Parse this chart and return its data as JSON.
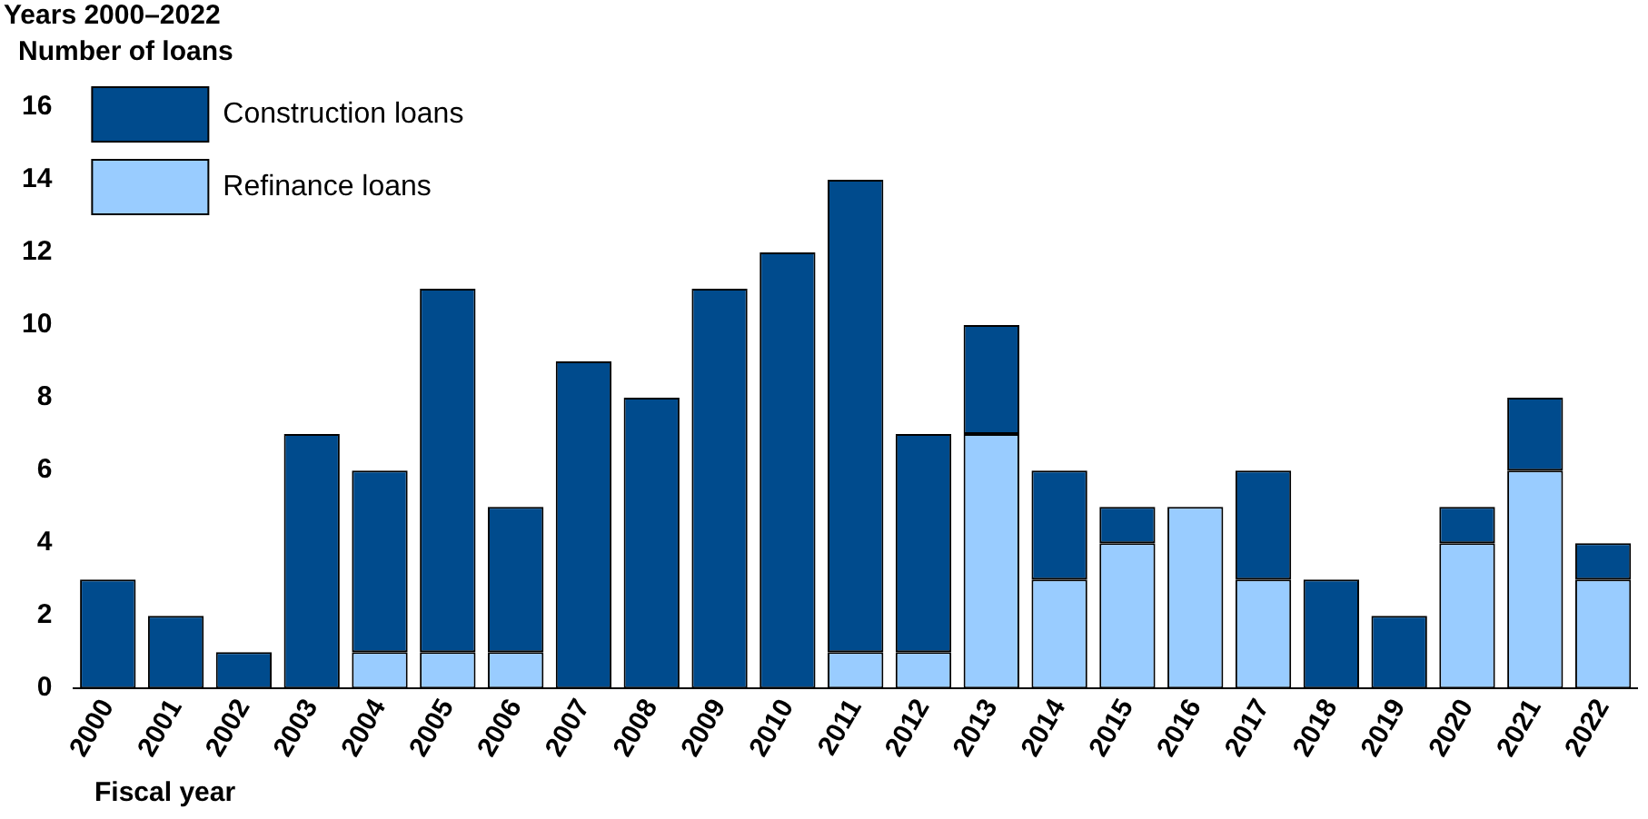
{
  "chart_data": {
    "type": "bar",
    "title": "Years 2000–2022",
    "ylabel": "Number of loans",
    "xlabel": "Fiscal year",
    "categories": [
      "2000",
      "2001",
      "2002",
      "2003",
      "2004",
      "2005",
      "2006",
      "2007",
      "2008",
      "2009",
      "2010",
      "2011",
      "2012",
      "2013",
      "2014",
      "2015",
      "2016",
      "2017",
      "2018",
      "2019",
      "2020",
      "2021",
      "2022"
    ],
    "series": [
      {
        "name": "Refinance loans",
        "color": "#99ccff",
        "values": [
          0,
          0,
          0,
          0,
          1,
          1,
          1,
          0,
          0,
          0,
          0,
          1,
          1,
          7,
          3,
          4,
          5,
          3,
          0,
          0,
          4,
          6,
          3
        ]
      },
      {
        "name": "Construction loans",
        "color": "#004b8d",
        "values": [
          3,
          2,
          1,
          7,
          5,
          10,
          4,
          9,
          8,
          11,
          12,
          13,
          6,
          3,
          3,
          1,
          0,
          3,
          3,
          2,
          1,
          2,
          1
        ]
      }
    ],
    "stacked": true,
    "ylim": [
      0,
      16
    ],
    "yticks": [
      0,
      2,
      4,
      6,
      8,
      10,
      12,
      14,
      16
    ],
    "grid": false,
    "legend": "top left"
  }
}
